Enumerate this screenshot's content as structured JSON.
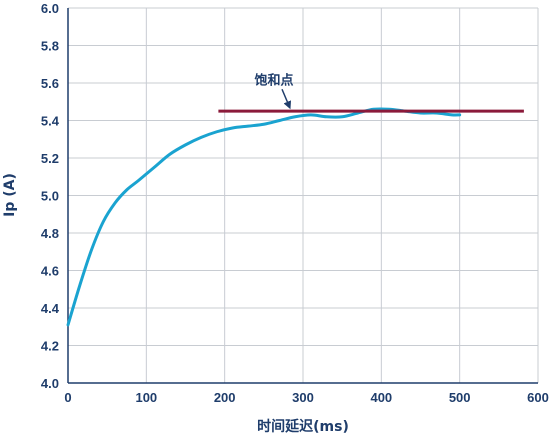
{
  "chart_data": {
    "type": "line",
    "title": "",
    "xlabel": "时间延迟(ms)",
    "ylabel": "Ip (A)",
    "xlim": [
      0,
      600
    ],
    "ylim": [
      4.0,
      6.0
    ],
    "grid": true,
    "x_ticks": [
      "0",
      "100",
      "200",
      "300",
      "400",
      "500",
      "600"
    ],
    "y_ticks": [
      "4.0",
      "4.2",
      "4.4",
      "4.6",
      "4.8",
      "5.0",
      "5.2",
      "5.4",
      "5.6",
      "5.8",
      "6.0"
    ],
    "series": [
      {
        "color": "#1aa3d0",
        "x": [
          0,
          15,
          30,
          45,
          60,
          75,
          90,
          110,
          130,
          150,
          170,
          190,
          210,
          230,
          250,
          270,
          290,
          310,
          330,
          350,
          370,
          390,
          410,
          430,
          450,
          470,
          490,
          500
        ],
        "y": [
          4.31,
          4.52,
          4.71,
          4.86,
          4.96,
          5.03,
          5.08,
          5.15,
          5.22,
          5.27,
          5.31,
          5.34,
          5.36,
          5.37,
          5.38,
          5.4,
          5.42,
          5.43,
          5.42,
          5.42,
          5.44,
          5.46,
          5.46,
          5.45,
          5.44,
          5.44,
          5.43,
          5.43
        ]
      }
    ],
    "reference_line": {
      "x": [
        192,
        582
      ],
      "y": 5.45,
      "color": "#8b1a3a"
    },
    "annotation": {
      "text": "饱和点",
      "x": 263,
      "y": 5.62,
      "arrow_to": [
        283,
        5.47
      ]
    }
  }
}
